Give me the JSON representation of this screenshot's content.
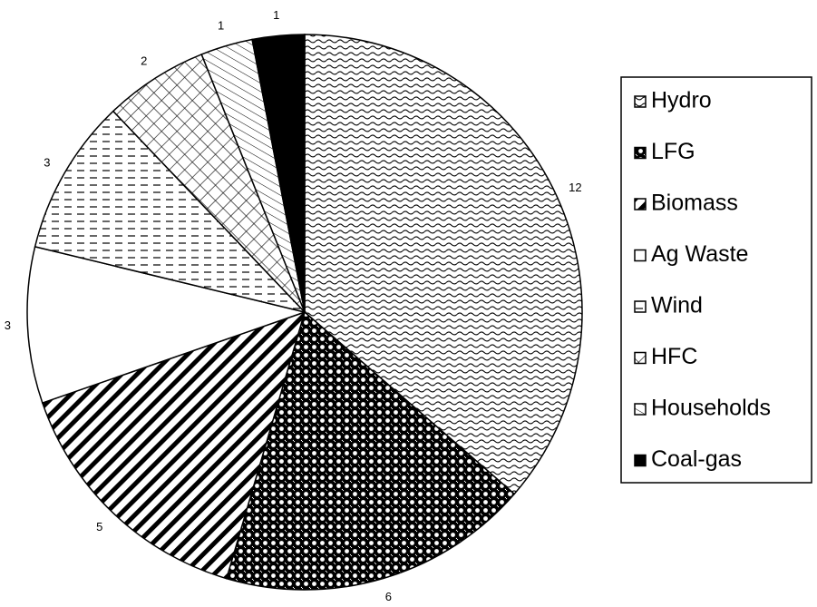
{
  "chart_data": {
    "type": "pie",
    "title": "",
    "categories": [
      "Hydro",
      "LFG",
      "Biomass",
      "Ag Waste",
      "Wind",
      "HFC",
      "Households",
      "Coal-gas"
    ],
    "values": [
      12,
      6,
      5,
      3,
      3,
      2,
      1,
      1
    ],
    "value_labels": [
      "12",
      "6",
      "5",
      "3",
      "3",
      "2",
      "1",
      "1"
    ],
    "legend": {
      "position": "right",
      "entries": [
        "Hydro",
        "LFG",
        "Biomass",
        "Ag Waste",
        "Wind",
        "HFC",
        "Households",
        "Coal-gas"
      ]
    },
    "patterns": [
      "wavy",
      "dotted-dark",
      "diagonal-stripes",
      "blank",
      "dashed-horizontal",
      "crosshatch",
      "light-diagonal",
      "solid-black"
    ],
    "colors": {
      "ink": "#000000",
      "background": "#ffffff"
    }
  }
}
